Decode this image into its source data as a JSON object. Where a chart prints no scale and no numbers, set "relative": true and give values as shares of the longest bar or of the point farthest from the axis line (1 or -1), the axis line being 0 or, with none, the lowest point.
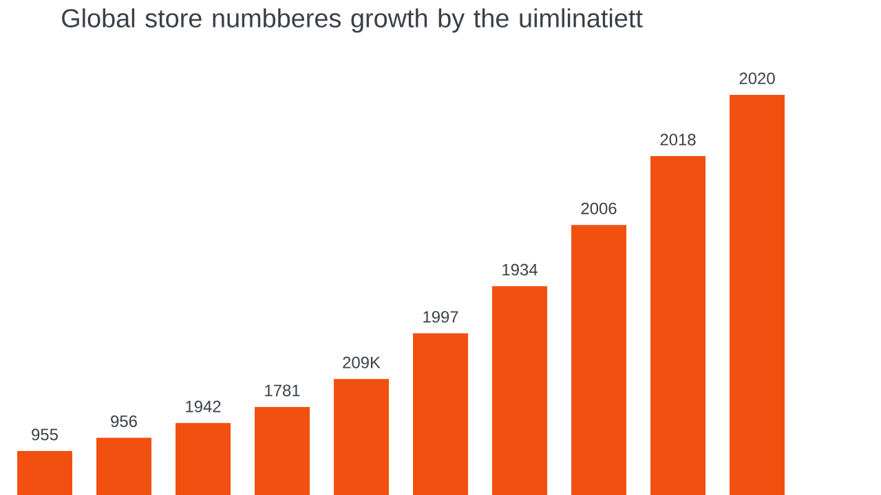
{
  "chart_data": {
    "type": "bar",
    "title": "Global store numbberes growth by the uimlinatiett",
    "relative": true,
    "color": "#f25010",
    "categories": [
      "955",
      "956",
      "1942",
      "1781",
      "209K",
      "1997",
      "1934",
      "2006",
      "2018",
      "2020"
    ],
    "values": [
      0.11,
      0.143,
      0.18,
      0.22,
      0.29,
      0.404,
      0.522,
      0.675,
      0.847,
      1
    ]
  }
}
